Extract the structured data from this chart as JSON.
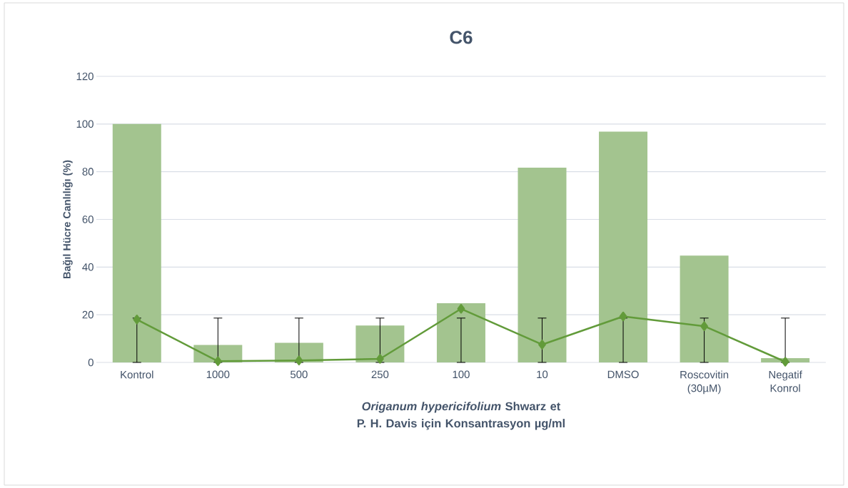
{
  "chart_data": {
    "type": "bar",
    "title": "C6",
    "xlabel": "*Origanum hypericifolium* Shwarz et P. H. Davis için Konsantrasyon µg/ml",
    "ylabel": "Bağıl Hücre Canlılığı (%)",
    "categories": [
      "Kontrol",
      "1000",
      "500",
      "250",
      "100",
      "10",
      "DMSO",
      "Roscovitin (30µM)",
      "Negatif Konrol"
    ],
    "series": [
      {
        "color": "#a3c48f",
        "values": [
          100,
          7.3,
          8.2,
          15.5,
          24.8,
          81.7,
          96.8,
          44.8,
          1.8
        ]
      },
      {
        "type": "line",
        "color": "#629b3a",
        "marker": "diamond",
        "values": [
          18,
          0.5,
          0.8,
          1.5,
          22.5,
          7.5,
          19.3,
          15.2,
          0.3
        ],
        "errors": [
          [
            0,
            18.6
          ],
          [
            0,
            18.6
          ],
          [
            0,
            18.6
          ],
          [
            0,
            18.6
          ],
          [
            0,
            18.6
          ],
          [
            0,
            18.6
          ],
          [
            0,
            18.6
          ],
          [
            0,
            18.6
          ],
          [
            0,
            18.6
          ]
        ]
      }
    ],
    "ylim": [
      0,
      120
    ],
    "yticks": [
      0,
      20,
      40,
      60,
      80,
      100,
      120
    ],
    "grid": "y"
  }
}
